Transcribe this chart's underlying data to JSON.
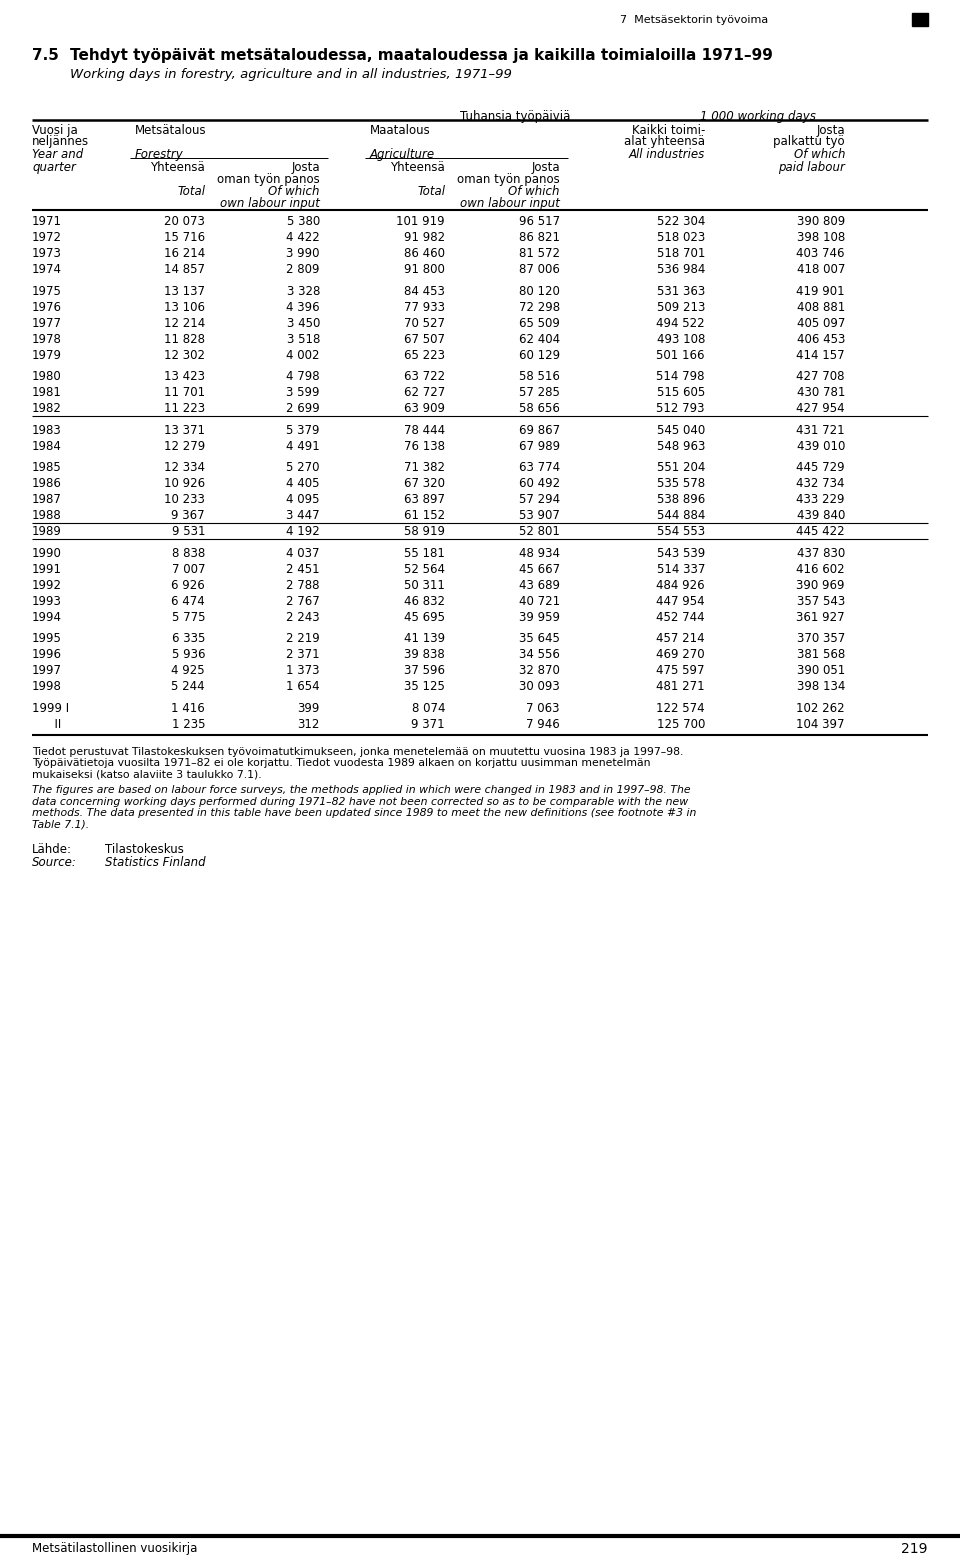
{
  "chapter_header": "7  Metsäsektorin työvoima",
  "section_num": "7.5",
  "title_fi": "Tehdyt työpäivät metsätaloudessa, maataloudessa ja kaikilla toimialoilla 1971–99",
  "title_en": "Working days in forestry, agriculture and in all industries, 1971–99",
  "unit_fi": "Tuhansia työpäiviä",
  "unit_en": "1 000 working days",
  "rows": [
    [
      "1971",
      "20 073",
      "5 380",
      "101 919",
      "96 517",
      "522 304",
      "390 809"
    ],
    [
      "1972",
      "15 716",
      "4 422",
      "91 982",
      "86 821",
      "518 023",
      "398 108"
    ],
    [
      "1973",
      "16 214",
      "3 990",
      "86 460",
      "81 572",
      "518 701",
      "403 746"
    ],
    [
      "1974",
      "14 857",
      "2 809",
      "91 800",
      "87 006",
      "536 984",
      "418 007"
    ],
    [
      "1975",
      "13 137",
      "3 328",
      "84 453",
      "80 120",
      "531 363",
      "419 901"
    ],
    [
      "1976",
      "13 106",
      "4 396",
      "77 933",
      "72 298",
      "509 213",
      "408 881"
    ],
    [
      "1977",
      "12 214",
      "3 450",
      "70 527",
      "65 509",
      "494 522",
      "405 097"
    ],
    [
      "1978",
      "11 828",
      "3 518",
      "67 507",
      "62 404",
      "493 108",
      "406 453"
    ],
    [
      "1979",
      "12 302",
      "4 002",
      "65 223",
      "60 129",
      "501 166",
      "414 157"
    ],
    [
      "1980",
      "13 423",
      "4 798",
      "63 722",
      "58 516",
      "514 798",
      "427 708"
    ],
    [
      "1981",
      "11 701",
      "3 599",
      "62 727",
      "57 285",
      "515 605",
      "430 781"
    ],
    [
      "1982",
      "11 223",
      "2 699",
      "63 909",
      "58 656",
      "512 793",
      "427 954"
    ],
    [
      "1983",
      "13 371",
      "5 379",
      "78 444",
      "69 867",
      "545 040",
      "431 721"
    ],
    [
      "1984",
      "12 279",
      "4 491",
      "76 138",
      "67 989",
      "548 963",
      "439 010"
    ],
    [
      "1985",
      "12 334",
      "5 270",
      "71 382",
      "63 774",
      "551 204",
      "445 729"
    ],
    [
      "1986",
      "10 926",
      "4 405",
      "67 320",
      "60 492",
      "535 578",
      "432 734"
    ],
    [
      "1987",
      "10 233",
      "4 095",
      "63 897",
      "57 294",
      "538 896",
      "433 229"
    ],
    [
      "1988",
      "9 367",
      "3 447",
      "61 152",
      "53 907",
      "544 884",
      "439 840"
    ],
    [
      "1989",
      "9 531",
      "4 192",
      "58 919",
      "52 801",
      "554 553",
      "445 422"
    ],
    [
      "1990",
      "8 838",
      "4 037",
      "55 181",
      "48 934",
      "543 539",
      "437 830"
    ],
    [
      "1991",
      "7 007",
      "2 451",
      "52 564",
      "45 667",
      "514 337",
      "416 602"
    ],
    [
      "1992",
      "6 926",
      "2 788",
      "50 311",
      "43 689",
      "484 926",
      "390 969"
    ],
    [
      "1993",
      "6 474",
      "2 767",
      "46 832",
      "40 721",
      "447 954",
      "357 543"
    ],
    [
      "1994",
      "5 775",
      "2 243",
      "45 695",
      "39 959",
      "452 744",
      "361 927"
    ],
    [
      "1995",
      "6 335",
      "2 219",
      "41 139",
      "35 645",
      "457 214",
      "370 357"
    ],
    [
      "1996",
      "5 936",
      "2 371",
      "39 838",
      "34 556",
      "469 270",
      "381 568"
    ],
    [
      "1997",
      "4 925",
      "1 373",
      "37 596",
      "32 870",
      "475 597",
      "390 051"
    ],
    [
      "1998",
      "5 244",
      "1 654",
      "35 125",
      "30 093",
      "481 271",
      "398 134"
    ],
    [
      "1999",
      "1 416",
      "399",
      "8 074",
      "7 063",
      "122 574",
      "102 262"
    ],
    [
      "",
      "1 235",
      "312",
      "9 371",
      "7 946",
      "125 700",
      "104 397"
    ]
  ],
  "year_labels": [
    "1971",
    "1972",
    "1973",
    "1974",
    "1975",
    "1976",
    "1977",
    "1978",
    "1979",
    "1980",
    "1981",
    "1982",
    "1983",
    "1984",
    "1985",
    "1986",
    "1987",
    "1988",
    "1989",
    "1990",
    "1991",
    "1992",
    "1993",
    "1994",
    "1995",
    "1996",
    "1997",
    "1998",
    "1999 I",
    "      II"
  ],
  "footnote_fi": "Tiedot perustuvat Tilastokeskuksen työvoimatutkimukseen, jonka menetelemää on muutettu vuosina 1983 ja 1997–98. Työpäivätietoja vuosilta 1971–82 ei ole korjattu. Tiedot vuodesta 1989 alkaen on korjattu uusimman menetelmän mukaiseksi (katso alaviite 3 taulukko 7.1).",
  "footnote_en": "The figures are based on labour force surveys, the methods applied in which were changed in 1983 and in 1997–98. The data concerning working days performed during 1971–82 have not been corrected so as to be comparable with the new methods. The data presented in this table have been updated since 1989 to meet the new definitions (see footnote #3 in Table 7.1).",
  "source_label_fi": "Lähde:",
  "source_label_en": "Source:",
  "source_name_fi": "Tilastokeskus",
  "source_name_en": "Statistics Finland",
  "bottom_left": "Metsätilastollinen vuosikirja",
  "bottom_right": "219"
}
